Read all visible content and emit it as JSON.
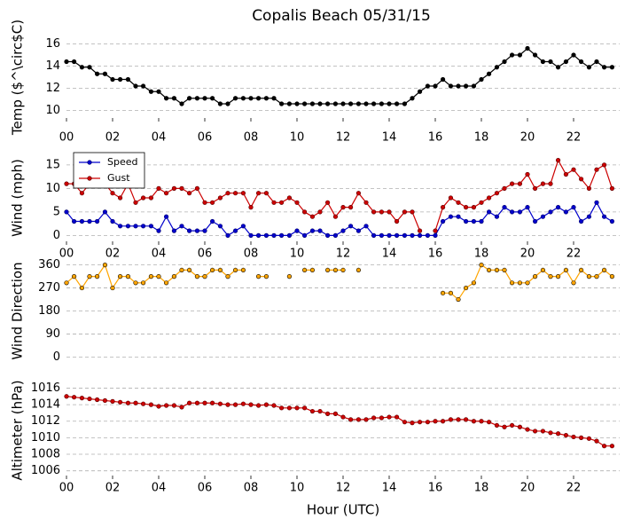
{
  "title": "Copalis Beach 05/31/15",
  "chart_data": [
    {
      "type": "line",
      "ylabel": "Temp ($^\\circ$C)",
      "xlim": [
        0,
        24
      ],
      "ylim": [
        9,
        17
      ],
      "yticks": [
        10,
        12,
        14,
        16
      ],
      "grid": true,
      "xticks": [
        {
          "value": 0,
          "label": "00"
        },
        {
          "value": 2,
          "label": "02"
        },
        {
          "value": 4,
          "label": "04"
        },
        {
          "value": 6,
          "label": "06"
        },
        {
          "value": 8,
          "label": "08"
        },
        {
          "value": 10,
          "label": "10"
        },
        {
          "value": 12,
          "label": "12"
        },
        {
          "value": 14,
          "label": "14"
        },
        {
          "value": 16,
          "label": "16"
        },
        {
          "value": 18,
          "label": "18"
        },
        {
          "value": 20,
          "label": "20"
        },
        {
          "value": 22,
          "label": "22"
        }
      ],
      "x": [
        0,
        0.33,
        0.67,
        1,
        1.33,
        1.67,
        2,
        2.33,
        2.67,
        3,
        3.33,
        3.67,
        4,
        4.33,
        4.67,
        5,
        5.33,
        5.67,
        6,
        6.33,
        6.67,
        7,
        7.33,
        7.67,
        8,
        8.33,
        8.67,
        9,
        9.33,
        9.67,
        10,
        10.33,
        10.67,
        11,
        11.33,
        11.67,
        12,
        12.33,
        12.67,
        13,
        13.33,
        13.67,
        14,
        14.33,
        14.67,
        15,
        15.33,
        15.67,
        16,
        16.33,
        16.67,
        17,
        17.33,
        17.67,
        18,
        18.33,
        18.67,
        19,
        19.33,
        19.67,
        20,
        20.33,
        20.67,
        21,
        21.33,
        21.67,
        22,
        22.33,
        22.67,
        23,
        23.33,
        23.67
      ],
      "series": [
        {
          "color": "#000000",
          "marker_edge": "#000000",
          "values": [
            14.4,
            14.4,
            13.9,
            13.9,
            13.3,
            13.3,
            12.8,
            12.8,
            12.8,
            12.2,
            12.2,
            11.7,
            11.7,
            11.1,
            11.1,
            10.6,
            11.1,
            11.1,
            11.1,
            11.1,
            10.6,
            10.6,
            11.1,
            11.1,
            11.1,
            11.1,
            11.1,
            11.1,
            10.6,
            10.6,
            10.6,
            10.6,
            10.6,
            10.6,
            10.6,
            10.6,
            10.6,
            10.6,
            10.6,
            10.6,
            10.6,
            10.6,
            10.6,
            10.6,
            10.6,
            11.1,
            11.7,
            12.2,
            12.2,
            12.8,
            12.2,
            12.2,
            12.2,
            12.2,
            12.8,
            13.3,
            13.9,
            14.4,
            15,
            15,
            15.6,
            15,
            14.4,
            14.4,
            13.9,
            14.4,
            15,
            14.4,
            13.9,
            14.4,
            13.9,
            13.9
          ]
        }
      ]
    },
    {
      "type": "line",
      "ylabel": "Wind (mph)",
      "xlim": [
        0,
        24
      ],
      "ylim": [
        -2,
        18
      ],
      "yticks": [
        0,
        5,
        10,
        15
      ],
      "grid": true,
      "legend": "upper left",
      "xticks": [
        {
          "value": 0,
          "label": "00"
        },
        {
          "value": 2,
          "label": "02"
        },
        {
          "value": 4,
          "label": "04"
        },
        {
          "value": 6,
          "label": "06"
        },
        {
          "value": 8,
          "label": "08"
        },
        {
          "value": 10,
          "label": "10"
        },
        {
          "value": 12,
          "label": "12"
        },
        {
          "value": 14,
          "label": "14"
        },
        {
          "value": 16,
          "label": "16"
        },
        {
          "value": 18,
          "label": "18"
        },
        {
          "value": 20,
          "label": "20"
        },
        {
          "value": 22,
          "label": "22"
        }
      ],
      "x": [
        0,
        0.33,
        0.67,
        1,
        1.33,
        1.67,
        2,
        2.33,
        2.67,
        3,
        3.33,
        3.67,
        4,
        4.33,
        4.67,
        5,
        5.33,
        5.67,
        6,
        6.33,
        6.67,
        7,
        7.33,
        7.67,
        8,
        8.33,
        8.67,
        9,
        9.33,
        9.67,
        10,
        10.33,
        10.67,
        11,
        11.33,
        11.67,
        12,
        12.33,
        12.67,
        13,
        13.33,
        13.67,
        14,
        14.33,
        14.67,
        15,
        15.33,
        15.67,
        16,
        16.33,
        16.67,
        17,
        17.33,
        17.67,
        18,
        18.33,
        18.67,
        19,
        19.33,
        19.67,
        20,
        20.33,
        20.67,
        21,
        21.33,
        21.67,
        22,
        22.33,
        22.67,
        23,
        23.33,
        23.67
      ],
      "series": [
        {
          "name": "Speed",
          "color": "#0000cc",
          "marker_edge": "#000066",
          "values": [
            5,
            3,
            3,
            3,
            3,
            5,
            3,
            2,
            2,
            2,
            2,
            2,
            1,
            4,
            1,
            2,
            1,
            1,
            1,
            3,
            2,
            0,
            1,
            2,
            0,
            0,
            0,
            0,
            0,
            0,
            1,
            0,
            1,
            1,
            0,
            0,
            1,
            2,
            1,
            2,
            0,
            0,
            0,
            0,
            0,
            0,
            0,
            0,
            0,
            3,
            4,
            4,
            3,
            3,
            3,
            5,
            4,
            6,
            5,
            5,
            6,
            3,
            4,
            5,
            6,
            5,
            6,
            3,
            4,
            7,
            4,
            3
          ]
        },
        {
          "name": "Gust",
          "color": "#cc0000",
          "marker_edge": "#550000",
          "values": [
            11,
            11,
            9,
            11,
            11,
            11,
            9,
            8,
            11,
            7,
            8,
            8,
            10,
            9,
            10,
            10,
            9,
            10,
            7,
            7,
            8,
            9,
            9,
            9,
            6,
            9,
            9,
            7,
            7,
            8,
            7,
            5,
            4,
            5,
            7,
            4,
            6,
            6,
            9,
            7,
            5,
            5,
            5,
            3,
            5,
            5,
            1,
            null,
            1,
            6,
            8,
            7,
            6,
            6,
            7,
            8,
            9,
            10,
            11,
            11,
            13,
            10,
            11,
            11,
            16,
            13,
            14,
            12,
            10,
            14,
            15,
            10
          ]
        }
      ]
    },
    {
      "type": "line",
      "ylabel": "Wind Direction",
      "xlim": [
        0,
        24
      ],
      "ylim": [
        -30,
        390
      ],
      "yticks": [
        0,
        90,
        180,
        270,
        360
      ],
      "grid": true,
      "x": [
        0,
        0.33,
        0.67,
        1,
        1.33,
        1.67,
        2,
        2.33,
        2.67,
        3,
        3.33,
        3.67,
        4,
        4.33,
        4.67,
        5,
        5.33,
        5.67,
        6,
        6.33,
        6.67,
        7,
        7.33,
        7.67,
        8,
        8.33,
        8.67,
        9,
        9.33,
        9.67,
        10,
        10.33,
        10.67,
        11,
        11.33,
        11.67,
        12,
        12.33,
        12.67,
        13,
        13.33,
        13.67,
        14,
        14.33,
        14.67,
        15,
        15.33,
        15.67,
        16,
        16.33,
        16.67,
        17,
        17.33,
        17.67,
        18,
        18.33,
        18.67,
        19,
        19.33,
        19.67,
        20,
        20.33,
        20.67,
        21,
        21.33,
        21.67,
        22,
        22.33,
        22.67,
        23,
        23.33,
        23.67
      ],
      "series": [
        {
          "color": "#ffa500",
          "marker_edge": "#000000",
          "values": [
            290,
            315,
            270,
            315,
            315,
            360,
            270,
            315,
            315,
            290,
            290,
            315,
            315,
            290,
            315,
            340,
            340,
            315,
            315,
            340,
            340,
            315,
            340,
            340,
            null,
            315,
            315,
            null,
            null,
            315,
            null,
            340,
            340,
            null,
            340,
            340,
            340,
            null,
            340,
            null,
            null,
            null,
            null,
            null,
            null,
            null,
            null,
            null,
            null,
            250,
            250,
            225,
            270,
            290,
            360,
            340,
            340,
            340,
            290,
            290,
            290,
            315,
            340,
            315,
            315,
            340,
            290,
            340,
            315,
            315,
            340,
            315
          ]
        }
      ]
    },
    {
      "type": "line",
      "ylabel": "Altimeter (hPa)",
      "xlabel": "Hour (UTC)",
      "xlim": [
        0,
        24
      ],
      "ylim": [
        1005,
        1016.8
      ],
      "yticks": [
        1006,
        1008,
        1010,
        1012,
        1014,
        1016
      ],
      "grid": true,
      "xticks": [
        {
          "value": 0,
          "label": "00"
        },
        {
          "value": 2,
          "label": "02"
        },
        {
          "value": 4,
          "label": "04"
        },
        {
          "value": 6,
          "label": "06"
        },
        {
          "value": 8,
          "label": "08"
        },
        {
          "value": 10,
          "label": "10"
        },
        {
          "value": 12,
          "label": "12"
        },
        {
          "value": 14,
          "label": "14"
        },
        {
          "value": 16,
          "label": "16"
        },
        {
          "value": 18,
          "label": "18"
        },
        {
          "value": 20,
          "label": "20"
        },
        {
          "value": 22,
          "label": "22"
        }
      ],
      "x": [
        0,
        0.33,
        0.67,
        1,
        1.33,
        1.67,
        2,
        2.33,
        2.67,
        3,
        3.33,
        3.67,
        4,
        4.33,
        4.67,
        5,
        5.33,
        5.67,
        6,
        6.33,
        6.67,
        7,
        7.33,
        7.67,
        8,
        8.33,
        8.67,
        9,
        9.33,
        9.67,
        10,
        10.33,
        10.67,
        11,
        11.33,
        11.67,
        12,
        12.33,
        12.67,
        13,
        13.33,
        13.67,
        14,
        14.33,
        14.67,
        15,
        15.33,
        15.67,
        16,
        16.33,
        16.67,
        17,
        17.33,
        17.67,
        18,
        18.33,
        18.67,
        19,
        19.33,
        19.67,
        20,
        20.33,
        20.67,
        21,
        21.33,
        21.67,
        22,
        22.33,
        22.67,
        23,
        23.33,
        23.67
      ],
      "series": [
        {
          "color": "#cc0000",
          "marker_edge": "#550000",
          "values": [
            1015,
            1014.9,
            1014.8,
            1014.7,
            1014.6,
            1014.5,
            1014.4,
            1014.3,
            1014.2,
            1014.2,
            1014.1,
            1014,
            1013.8,
            1013.9,
            1013.9,
            1013.7,
            1014.2,
            1014.2,
            1014.2,
            1014.2,
            1014.1,
            1014,
            1014,
            1014.1,
            1014,
            1013.9,
            1014,
            1013.9,
            1013.6,
            1013.6,
            1013.6,
            1013.6,
            1013.2,
            1013.2,
            1012.9,
            1012.9,
            1012.5,
            1012.2,
            1012.2,
            1012.2,
            1012.4,
            1012.4,
            1012.5,
            1012.5,
            1011.9,
            1011.8,
            1011.9,
            1011.9,
            1012,
            1012,
            1012.2,
            1012.2,
            1012.2,
            1012,
            1012,
            1011.9,
            1011.5,
            1011.3,
            1011.5,
            1011.3,
            1011,
            1010.8,
            1010.8,
            1010.6,
            1010.5,
            1010.3,
            1010.1,
            1010,
            1009.9,
            1009.6,
            1009,
            1009
          ]
        }
      ]
    }
  ]
}
